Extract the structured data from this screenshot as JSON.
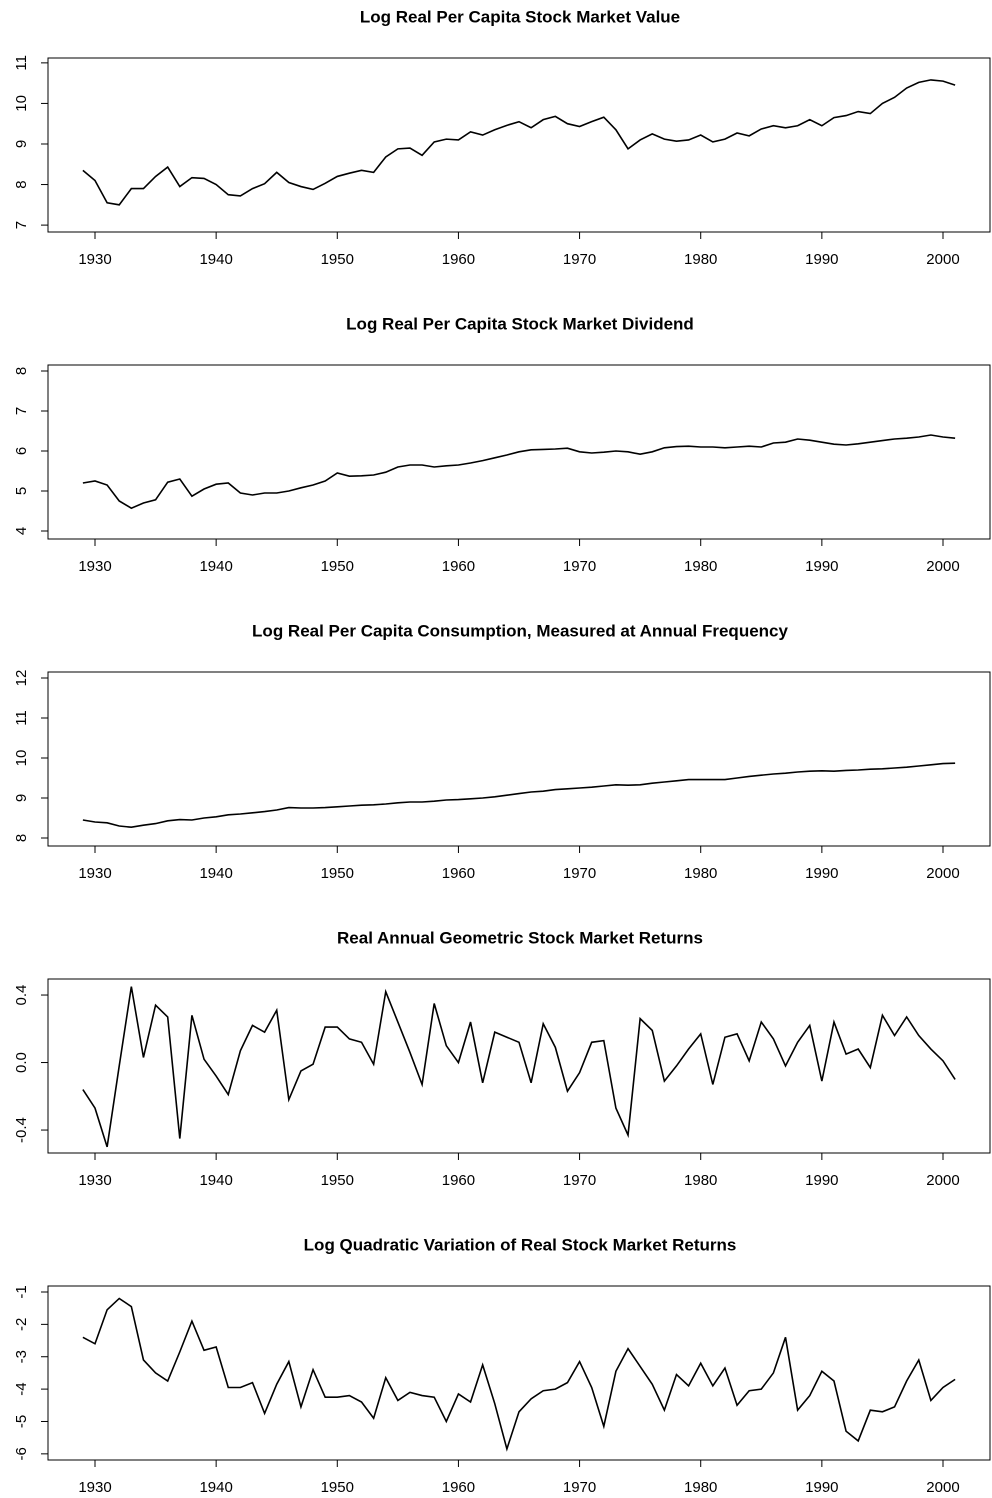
{
  "chart_data": [
    {
      "type": "line",
      "title": "Log Real Per Capita Stock Market Value",
      "color": "#000000",
      "x": [
        1929,
        1930,
        1931,
        1932,
        1933,
        1934,
        1935,
        1936,
        1937,
        1938,
        1939,
        1940,
        1941,
        1942,
        1943,
        1944,
        1945,
        1946,
        1947,
        1948,
        1949,
        1950,
        1951,
        1952,
        1953,
        1954,
        1955,
        1956,
        1957,
        1958,
        1959,
        1960,
        1961,
        1962,
        1963,
        1964,
        1965,
        1966,
        1967,
        1968,
        1969,
        1970,
        1971,
        1972,
        1973,
        1974,
        1975,
        1976,
        1977,
        1978,
        1979,
        1980,
        1981,
        1982,
        1983,
        1984,
        1985,
        1986,
        1987,
        1988,
        1989,
        1990,
        1991,
        1992,
        1993,
        1994,
        1995,
        1996,
        1997,
        1998,
        1999,
        2000,
        2001
      ],
      "values": [
        8.35,
        8.1,
        7.55,
        7.5,
        7.9,
        7.9,
        8.2,
        8.43,
        7.95,
        8.17,
        8.15,
        8.0,
        7.75,
        7.72,
        7.9,
        8.02,
        8.3,
        8.05,
        7.95,
        7.88,
        8.03,
        8.2,
        8.28,
        8.35,
        8.3,
        8.68,
        8.88,
        8.9,
        8.72,
        9.05,
        9.12,
        9.1,
        9.3,
        9.22,
        9.35,
        9.46,
        9.55,
        9.4,
        9.6,
        9.68,
        9.5,
        9.43,
        9.55,
        9.66,
        9.35,
        8.88,
        9.1,
        9.25,
        9.12,
        9.07,
        9.1,
        9.22,
        9.05,
        9.12,
        9.27,
        9.2,
        9.37,
        9.45,
        9.4,
        9.45,
        9.6,
        9.45,
        9.65,
        9.7,
        9.8,
        9.75,
        10.0,
        10.15,
        10.38,
        10.52,
        10.58,
        10.55,
        10.45
      ],
      "xlim": [
        1926.12,
        2003.88
      ],
      "xticks": [
        1930,
        1940,
        1950,
        1960,
        1970,
        1980,
        1990,
        2000
      ],
      "ylim": [
        6.83,
        11.12
      ],
      "yticks": [
        7,
        8,
        9,
        10,
        11
      ]
    },
    {
      "type": "line",
      "title": "Log Real Per Capita Stock Market Dividend",
      "color": "#000000",
      "x": [
        1929,
        1930,
        1931,
        1932,
        1933,
        1934,
        1935,
        1936,
        1937,
        1938,
        1939,
        1940,
        1941,
        1942,
        1943,
        1944,
        1945,
        1946,
        1947,
        1948,
        1949,
        1950,
        1951,
        1952,
        1953,
        1954,
        1955,
        1956,
        1957,
        1958,
        1959,
        1960,
        1961,
        1962,
        1963,
        1964,
        1965,
        1966,
        1967,
        1968,
        1969,
        1970,
        1971,
        1972,
        1973,
        1974,
        1975,
        1976,
        1977,
        1978,
        1979,
        1980,
        1981,
        1982,
        1983,
        1984,
        1985,
        1986,
        1987,
        1988,
        1989,
        1990,
        1991,
        1992,
        1993,
        1994,
        1995,
        1996,
        1997,
        1998,
        1999,
        2000,
        2001
      ],
      "values": [
        5.2,
        5.25,
        5.15,
        4.75,
        4.57,
        4.7,
        4.78,
        5.22,
        5.3,
        4.87,
        5.05,
        5.17,
        5.2,
        4.95,
        4.9,
        4.95,
        4.95,
        5.0,
        5.08,
        5.15,
        5.25,
        5.45,
        5.37,
        5.38,
        5.4,
        5.47,
        5.6,
        5.65,
        5.65,
        5.6,
        5.63,
        5.65,
        5.7,
        5.76,
        5.83,
        5.9,
        5.98,
        6.03,
        6.04,
        6.05,
        6.07,
        5.98,
        5.95,
        5.97,
        6.0,
        5.98,
        5.92,
        5.98,
        6.08,
        6.11,
        6.12,
        6.1,
        6.1,
        6.08,
        6.1,
        6.12,
        6.1,
        6.2,
        6.22,
        6.3,
        6.27,
        6.22,
        6.17,
        6.15,
        6.18,
        6.22,
        6.26,
        6.3,
        6.32,
        6.35,
        6.4,
        6.35,
        6.32
      ],
      "xlim": [
        1926.12,
        2003.88
      ],
      "xticks": [
        1930,
        1940,
        1950,
        1960,
        1970,
        1980,
        1990,
        2000
      ],
      "ylim": [
        3.8,
        8.15
      ],
      "yticks": [
        4,
        5,
        6,
        7,
        8
      ]
    },
    {
      "type": "line",
      "title": "Log Real Per Capita Consumption, Measured at Annual Frequency",
      "color": "#000000",
      "x": [
        1929,
        1930,
        1931,
        1932,
        1933,
        1934,
        1935,
        1936,
        1937,
        1938,
        1939,
        1940,
        1941,
        1942,
        1943,
        1944,
        1945,
        1946,
        1947,
        1948,
        1949,
        1950,
        1951,
        1952,
        1953,
        1954,
        1955,
        1956,
        1957,
        1958,
        1959,
        1960,
        1961,
        1962,
        1963,
        1964,
        1965,
        1966,
        1967,
        1968,
        1969,
        1970,
        1971,
        1972,
        1973,
        1974,
        1975,
        1976,
        1977,
        1978,
        1979,
        1980,
        1981,
        1982,
        1983,
        1984,
        1985,
        1986,
        1987,
        1988,
        1989,
        1990,
        1991,
        1992,
        1993,
        1994,
        1995,
        1996,
        1997,
        1998,
        1999,
        2000,
        2001
      ],
      "values": [
        8.45,
        8.4,
        8.38,
        8.3,
        8.27,
        8.32,
        8.36,
        8.43,
        8.46,
        8.45,
        8.5,
        8.53,
        8.58,
        8.6,
        8.63,
        8.66,
        8.7,
        8.76,
        8.75,
        8.75,
        8.76,
        8.78,
        8.8,
        8.82,
        8.83,
        8.85,
        8.88,
        8.9,
        8.9,
        8.92,
        8.95,
        8.96,
        8.98,
        9.0,
        9.03,
        9.07,
        9.11,
        9.15,
        9.17,
        9.21,
        9.23,
        9.25,
        9.27,
        9.3,
        9.33,
        9.32,
        9.33,
        9.37,
        9.4,
        9.43,
        9.46,
        9.46,
        9.46,
        9.46,
        9.5,
        9.54,
        9.57,
        9.6,
        9.62,
        9.65,
        9.67,
        9.68,
        9.67,
        9.69,
        9.7,
        9.72,
        9.73,
        9.75,
        9.77,
        9.8,
        9.83,
        9.86,
        9.87
      ],
      "xlim": [
        1926.12,
        2003.88
      ],
      "xticks": [
        1930,
        1940,
        1950,
        1960,
        1970,
        1980,
        1990,
        2000
      ],
      "ylim": [
        7.8,
        12.15
      ],
      "yticks": [
        8,
        9,
        10,
        11,
        12
      ]
    },
    {
      "type": "line",
      "title": "Real Annual Geometric Stock Market Returns",
      "color": "#000000",
      "x": [
        1929,
        1930,
        1931,
        1932,
        1933,
        1934,
        1935,
        1936,
        1937,
        1938,
        1939,
        1940,
        1941,
        1942,
        1943,
        1944,
        1945,
        1946,
        1947,
        1948,
        1949,
        1950,
        1951,
        1952,
        1953,
        1954,
        1955,
        1956,
        1957,
        1958,
        1959,
        1960,
        1961,
        1962,
        1963,
        1964,
        1965,
        1966,
        1967,
        1968,
        1969,
        1970,
        1971,
        1972,
        1973,
        1974,
        1975,
        1976,
        1977,
        1978,
        1979,
        1980,
        1981,
        1982,
        1983,
        1984,
        1985,
        1986,
        1987,
        1988,
        1989,
        1990,
        1991,
        1992,
        1993,
        1994,
        1995,
        1996,
        1997,
        1998,
        1999,
        2000,
        2001
      ],
      "values": [
        -0.16,
        -0.27,
        -0.5,
        -0.02,
        0.45,
        0.03,
        0.34,
        0.27,
        -0.45,
        0.28,
        0.02,
        -0.08,
        -0.19,
        0.07,
        0.22,
        0.18,
        0.31,
        -0.22,
        -0.05,
        -0.01,
        0.21,
        0.21,
        0.14,
        0.12,
        -0.01,
        0.42,
        0.24,
        0.06,
        -0.13,
        0.35,
        0.1,
        0.0,
        0.24,
        -0.12,
        0.18,
        0.15,
        0.12,
        -0.12,
        0.23,
        0.09,
        -0.17,
        -0.06,
        0.12,
        0.13,
        -0.27,
        -0.43,
        0.26,
        0.19,
        -0.11,
        -0.02,
        0.08,
        0.17,
        -0.13,
        0.15,
        0.17,
        0.01,
        0.24,
        0.14,
        -0.02,
        0.12,
        0.22,
        -0.11,
        0.24,
        0.05,
        0.08,
        -0.03,
        0.28,
        0.16,
        0.27,
        0.16,
        0.08,
        0.01,
        -0.1
      ],
      "xlim": [
        1926.12,
        2003.88
      ],
      "xticks": [
        1930,
        1940,
        1950,
        1960,
        1970,
        1980,
        1990,
        2000
      ],
      "ylim": [
        -0.536,
        0.495
      ],
      "yticks": [
        -0.4,
        {
          "value": 0,
          "label": "0.0"
        },
        0.4
      ]
    },
    {
      "type": "line",
      "title": "Log Quadratic Variation of Real Stock Market Returns",
      "color": "#000000",
      "x": [
        1929,
        1930,
        1931,
        1932,
        1933,
        1934,
        1935,
        1936,
        1937,
        1938,
        1939,
        1940,
        1941,
        1942,
        1943,
        1944,
        1945,
        1946,
        1947,
        1948,
        1949,
        1950,
        1951,
        1952,
        1953,
        1954,
        1955,
        1956,
        1957,
        1958,
        1959,
        1960,
        1961,
        1962,
        1963,
        1964,
        1965,
        1966,
        1967,
        1968,
        1969,
        1970,
        1971,
        1972,
        1973,
        1974,
        1975,
        1976,
        1977,
        1978,
        1979,
        1980,
        1981,
        1982,
        1983,
        1984,
        1985,
        1986,
        1987,
        1988,
        1989,
        1990,
        1991,
        1992,
        1993,
        1994,
        1995,
        1996,
        1997,
        1998,
        1999,
        2000,
        2001
      ],
      "values": [
        -2.4,
        -2.6,
        -1.55,
        -1.2,
        -1.45,
        -3.1,
        -3.5,
        -3.75,
        -2.85,
        -1.9,
        -2.8,
        -2.7,
        -3.95,
        -3.95,
        -3.8,
        -4.75,
        -3.85,
        -3.15,
        -4.55,
        -3.4,
        -4.25,
        -4.25,
        -4.2,
        -4.4,
        -4.9,
        -3.65,
        -4.35,
        -4.1,
        -4.2,
        -4.25,
        -5.0,
        -4.15,
        -4.4,
        -3.25,
        -4.45,
        -5.85,
        -4.7,
        -4.3,
        -4.05,
        -4.0,
        -3.8,
        -3.15,
        -3.95,
        -5.15,
        -3.45,
        -2.75,
        -3.3,
        -3.85,
        -4.65,
        -3.55,
        -3.9,
        -3.2,
        -3.9,
        -3.35,
        -4.5,
        -4.05,
        -4.0,
        -3.5,
        -2.4,
        -4.65,
        -4.2,
        -3.45,
        -3.75,
        -5.3,
        -5.6,
        -4.65,
        -4.7,
        -4.55,
        -3.75,
        -3.1,
        -4.35,
        -3.95,
        -3.7
      ],
      "xlim": [
        1926.12,
        2003.88
      ],
      "xticks": [
        1930,
        1940,
        1950,
        1960,
        1970,
        1980,
        1990,
        2000
      ],
      "ylim": [
        -6.19,
        -0.815
      ],
      "yticks": [
        -6,
        -5,
        -4,
        -3,
        -2,
        -1
      ]
    }
  ]
}
